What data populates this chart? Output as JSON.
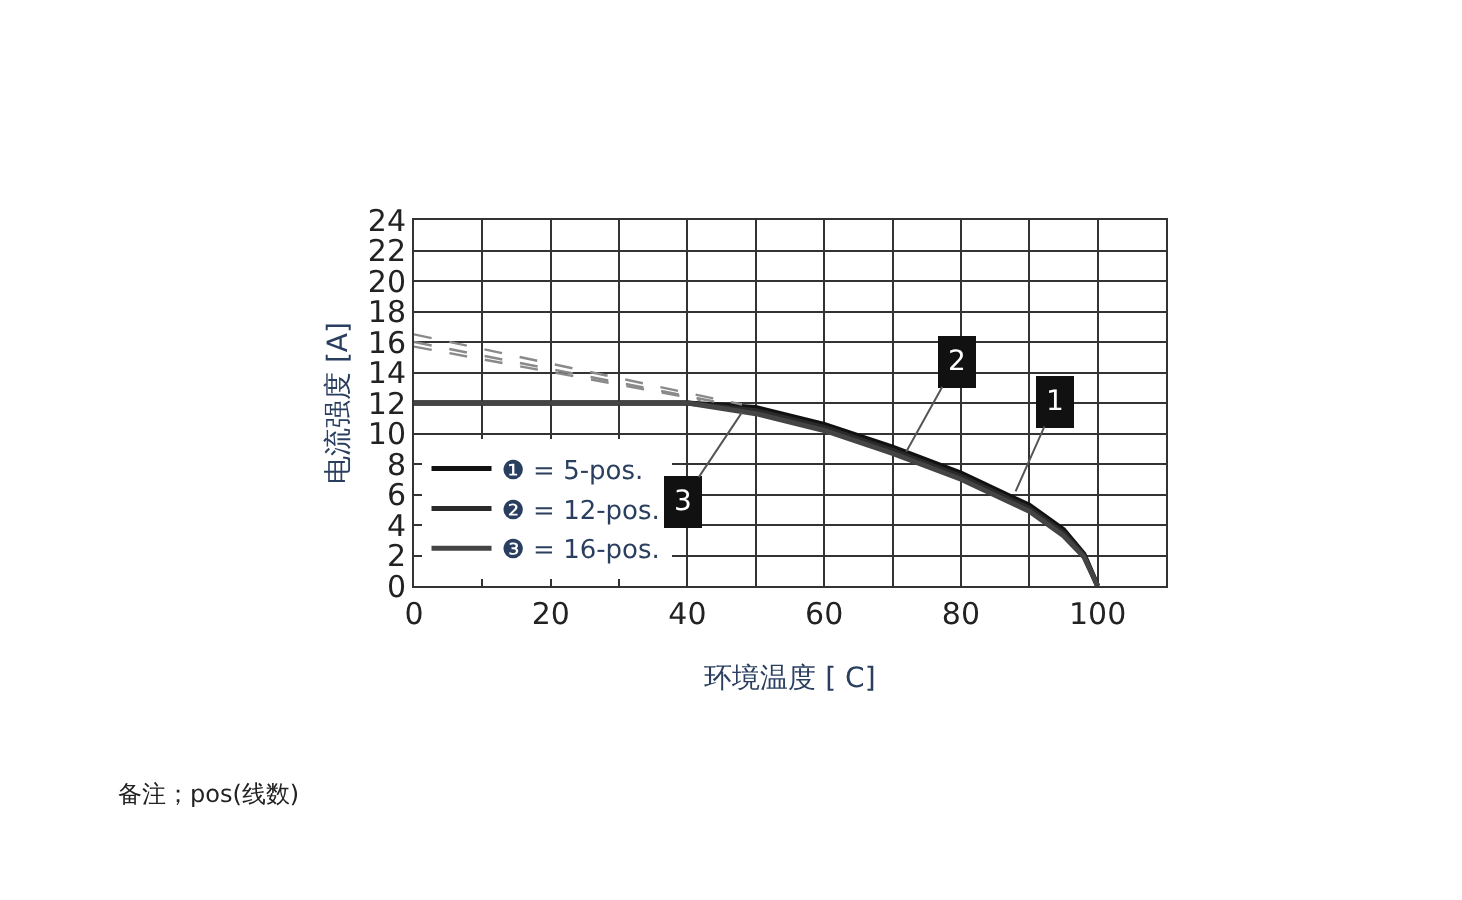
{
  "chart_data": {
    "type": "line",
    "xlabel": "环境温度 [ C]",
    "ylabel": "电流强度 [A]",
    "xlim": [
      0,
      110
    ],
    "ylim": [
      0,
      24
    ],
    "xticks": [
      0,
      {
        "value": 10,
        "label": null
      },
      20,
      {
        "value": 30,
        "label": null
      },
      40,
      {
        "value": 50,
        "label": null
      },
      60,
      {
        "value": 70,
        "label": null
      },
      80,
      {
        "value": 90,
        "label": null
      },
      100,
      {
        "value": 110,
        "label": null
      }
    ],
    "yticks": [
      0,
      2,
      4,
      6,
      8,
      10,
      12,
      14,
      16,
      18,
      20,
      22,
      24
    ],
    "grid": true,
    "legend": "bottom left",
    "marker": "none",
    "series": [
      {
        "name": "❶ = 5-pos.",
        "color": "#111111",
        "line_style": "solid",
        "x": [
          0,
          40,
          50,
          60,
          70,
          80,
          90,
          95,
          98,
          100
        ],
        "values": [
          12,
          12,
          11.7,
          10.6,
          9.1,
          7.4,
          5.3,
          3.7,
          2.1,
          0
        ]
      },
      {
        "name": "❷ = 12-pos.",
        "color": "#2a2a2a",
        "line_style": "solid",
        "x": [
          0,
          40,
          50,
          60,
          70,
          80,
          90,
          95,
          98,
          100
        ],
        "values": [
          12,
          12,
          11.5,
          10.4,
          8.9,
          7.2,
          5.1,
          3.5,
          2.0,
          0
        ]
      },
      {
        "name": "❸ = 16-pos.",
        "color": "#444444",
        "line_style": "solid",
        "x": [
          0,
          40,
          50,
          60,
          70,
          80,
          90,
          95,
          98,
          100
        ],
        "values": [
          12,
          12,
          11.3,
          10.2,
          8.7,
          7.0,
          4.9,
          3.3,
          1.9,
          0
        ]
      },
      {
        "color": "#8a8a8a",
        "line_style": "dashed",
        "x": [
          0,
          48
        ],
        "values": [
          16.5,
          11.9
        ]
      },
      {
        "color": "#8a8a8a",
        "line_style": "dashed",
        "x": [
          0,
          45
        ],
        "values": [
          16.0,
          12.0
        ]
      },
      {
        "color": "#8a8a8a",
        "line_style": "dashed",
        "x": [
          0,
          42
        ],
        "values": [
          15.7,
          12.2
        ]
      }
    ],
    "annotations": [
      {
        "text": "1",
        "x": 88,
        "y": 6.2
      },
      {
        "text": "2",
        "x": 72,
        "y": 8.8
      },
      {
        "text": "3",
        "x": 48,
        "y": 11.4
      },
      "备注；pos(线数)"
    ]
  }
}
